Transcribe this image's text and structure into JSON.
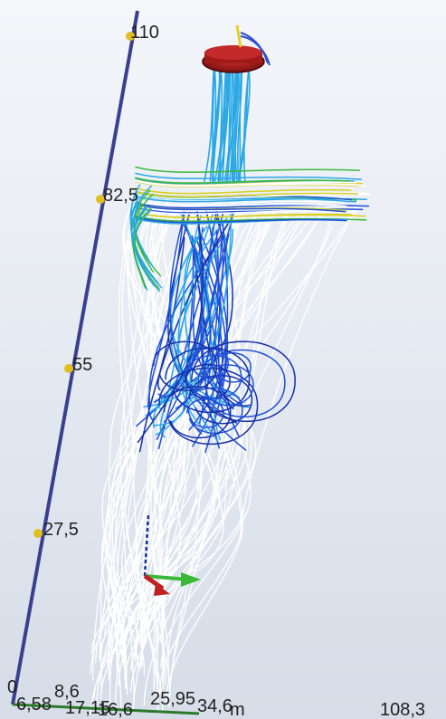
{
  "scene": {
    "background_top": "#f4f6fa",
    "background_bottom": "#d6dde8",
    "vertical_axis": {
      "color": "#3a3f8f",
      "tick_color": "#e0c020",
      "ticks": [
        "110",
        "82,5",
        "55",
        "27,5",
        "0"
      ]
    },
    "bottom_axis": {
      "labels": [
        "6,58",
        "8,6",
        "17,15",
        "16,6",
        "25,95",
        "34,6",
        "m",
        "108,3"
      ],
      "color": "#2a7a2a"
    },
    "streamline_colors": {
      "white": "#ffffff",
      "light_blue": "#2aa8e6",
      "blue": "#1f4fd6",
      "dark_blue": "#1530a8",
      "green": "#3ab83a",
      "yellow": "#d8d020",
      "red": "#c02020"
    },
    "objects": {
      "fan": "red cylinder at top",
      "gizmo": "xyz orientation marker"
    }
  }
}
